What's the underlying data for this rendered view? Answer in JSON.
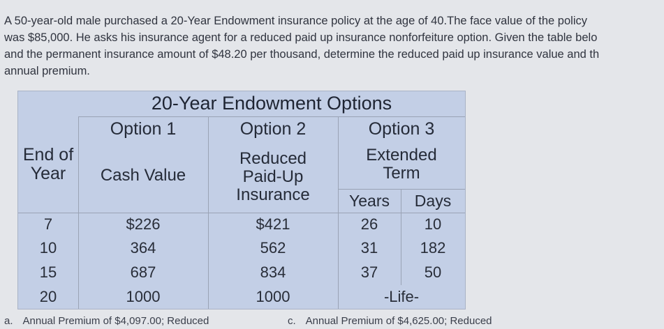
{
  "question": {
    "lines": [
      "A 50-year-old male purchased a 20-Year Endowment insurance policy at the age of 40.The face value of the policy",
      "was $85,000. He asks his insurance agent for a reduced paid up insurance nonforfeiture option. Given the table belo",
      "and the permanent insurance amount of $48.20 per thousand, determine the reduced paid up insurance value and th",
      "annual premium."
    ]
  },
  "table": {
    "title": "20-Year Endowment Options",
    "end_of_year_header": "End of Year",
    "option1": {
      "label": "Option 1",
      "sub": "Cash Value"
    },
    "option2": {
      "label": "Option 2",
      "sub": "Reduced Paid-Up Insurance"
    },
    "option3": {
      "label": "Option 3",
      "sub": "Extended Term",
      "years_label": "Years",
      "days_label": "Days"
    },
    "rows": [
      {
        "year": "7",
        "cash": "$226",
        "paidup": "$421",
        "ext_years": "26",
        "ext_days": "10"
      },
      {
        "year": "10",
        "cash": "364",
        "paidup": "562",
        "ext_years": "31",
        "ext_days": "182"
      },
      {
        "year": "15",
        "cash": "687",
        "paidup": "834",
        "ext_years": "37",
        "ext_days": "50"
      },
      {
        "year": "20",
        "cash": "1000",
        "paidup": "1000",
        "ext_life": "-Life-"
      }
    ]
  },
  "answers": [
    {
      "label": "a.",
      "text": "Annual Premium of $4,097.00; Reduced"
    },
    {
      "label": "c.",
      "text": "Annual Premium of $4,625.00; Reduced"
    }
  ]
}
